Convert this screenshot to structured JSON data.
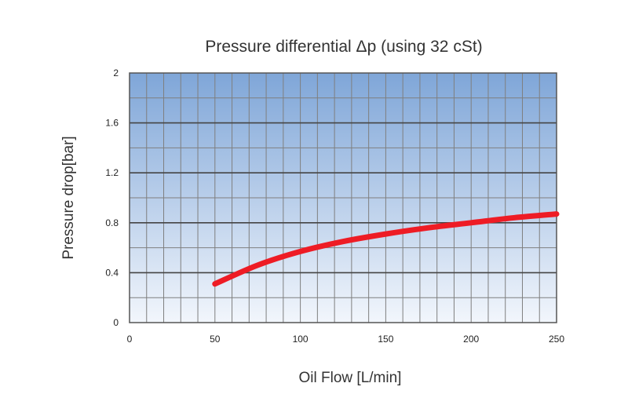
{
  "chart_data": {
    "type": "line",
    "title": "Pressure differential Δp (using 32 cSt)",
    "xlabel": "Oil Flow [L/min]",
    "ylabel": "Pressure drop[bar]",
    "xlim": [
      0,
      250
    ],
    "ylim": [
      0,
      2
    ],
    "x_ticks": [
      "0",
      "50",
      "100",
      "150",
      "200",
      "250"
    ],
    "y_ticks": [
      "0",
      "0.4",
      "0.8",
      "1.2",
      "1.6",
      "2"
    ],
    "grid": true,
    "series": [
      {
        "color": "#ee1c25",
        "x": [
          50,
          75,
          100,
          125,
          150,
          175,
          200,
          225,
          250
        ],
        "y": [
          0.31,
          0.46,
          0.57,
          0.65,
          0.71,
          0.76,
          0.8,
          0.84,
          0.87
        ]
      }
    ],
    "colors": {
      "background_top": "#7fa6d8",
      "background_bottom": "#f2f6fc",
      "grid": "#7f7f7f"
    }
  }
}
